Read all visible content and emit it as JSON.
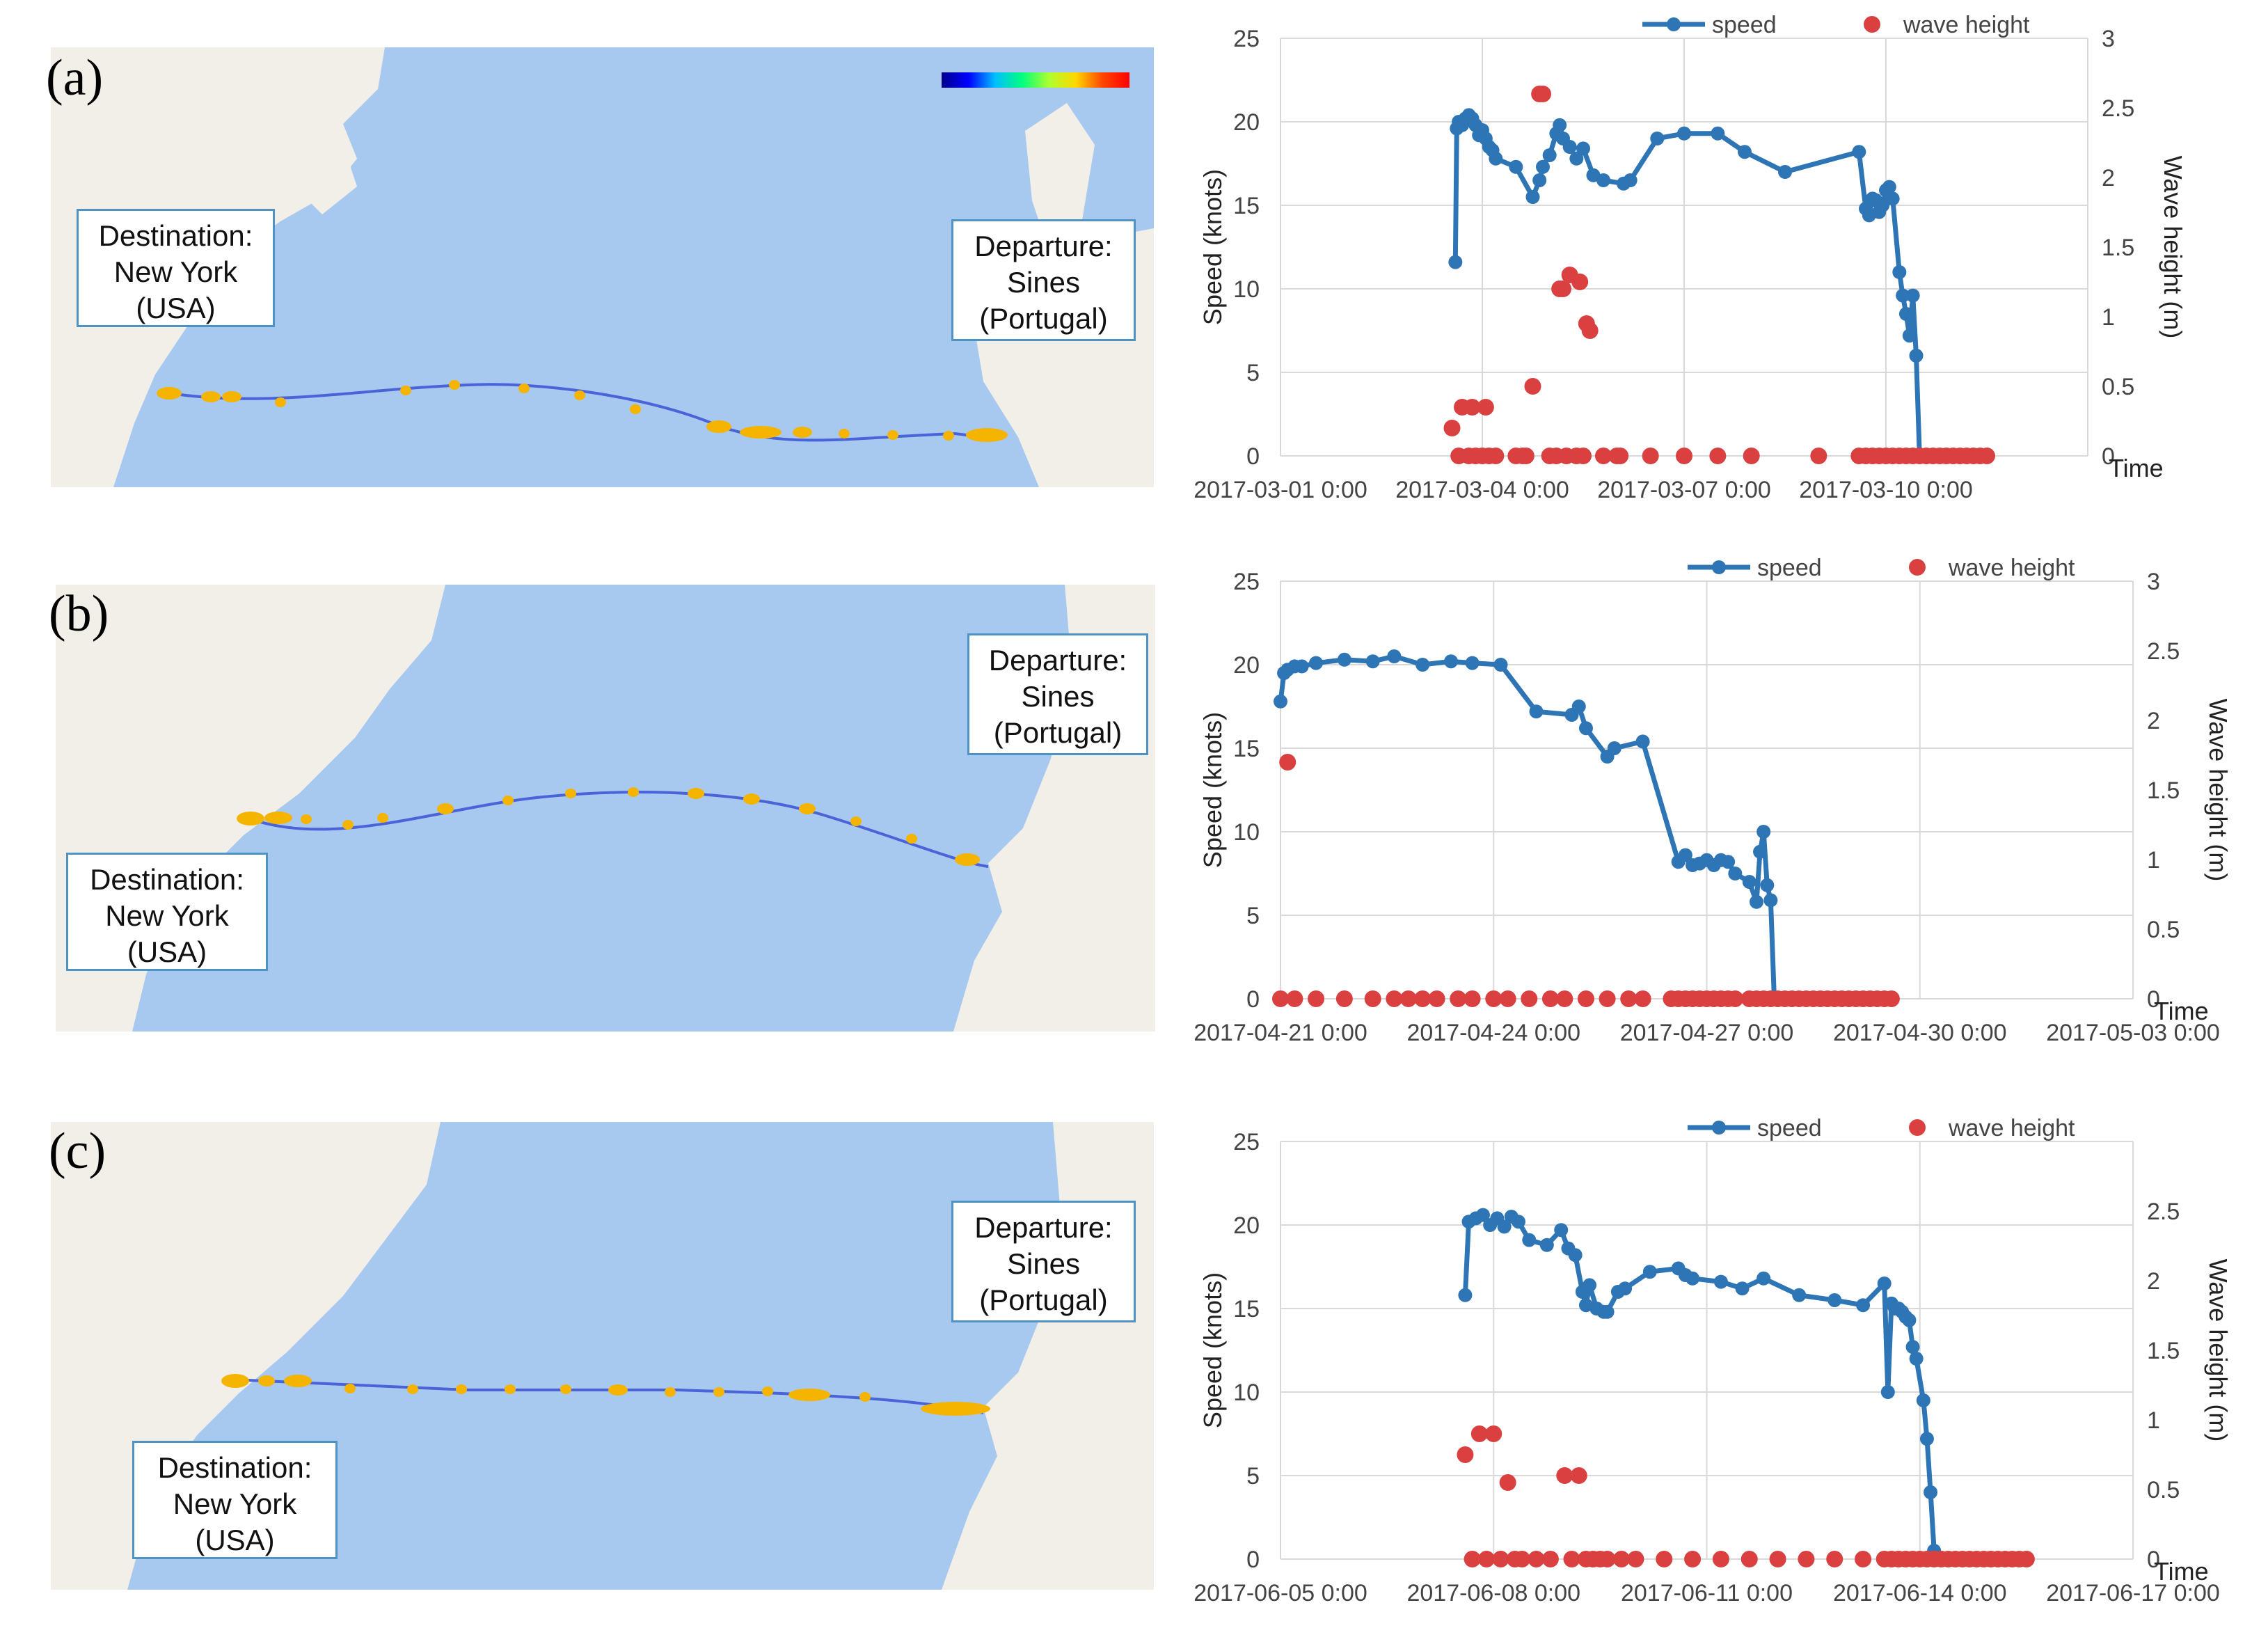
{
  "panels": [
    {
      "label": "(a)",
      "destination": [
        "Destination:",
        "New York",
        "(USA)"
      ],
      "departure": [
        "Departure:",
        "Sines",
        "(Portugal)"
      ],
      "chart_data": {
        "type": "line+scatter",
        "series": [
          {
            "name": "speed",
            "axis": "left",
            "style": "line",
            "x": [
              2.6,
              2.62,
              2.65,
              2.7,
              2.75,
              2.8,
              2.85,
              2.9,
              2.95,
              3.0,
              3.05,
              3.1,
              3.15,
              3.2,
              3.5,
              3.75,
              3.85,
              3.9,
              4.0,
              4.1,
              4.15,
              4.2,
              4.3,
              4.4,
              4.5,
              4.65,
              4.8,
              5.1,
              5.2,
              5.6,
              6.0,
              6.5,
              6.9,
              7.5,
              8.6,
              8.7,
              8.75,
              8.8,
              8.85,
              8.9,
              8.95,
              9.0,
              9.05,
              9.1,
              9.2,
              9.25,
              9.3,
              9.35,
              9.4,
              9.45,
              9.5
            ],
            "values": [
              11.6,
              19.6,
              20.0,
              19.8,
              20.2,
              20.4,
              20.2,
              19.8,
              19.2,
              19.5,
              19.0,
              18.5,
              18.3,
              17.8,
              17.3,
              15.5,
              16.5,
              17.3,
              18.0,
              19.3,
              19.8,
              19.0,
              18.5,
              17.8,
              18.4,
              16.8,
              16.5,
              16.3,
              16.5,
              19.0,
              19.3,
              19.3,
              18.2,
              17.0,
              18.2,
              14.8,
              14.4,
              15.4,
              15.3,
              14.6,
              15.0,
              15.9,
              16.1,
              15.4,
              11.0,
              9.6,
              8.5,
              7.2,
              9.6,
              6.0,
              0
            ]
          },
          {
            "name": "wave height",
            "axis": "right",
            "style": "markers",
            "x": [
              2.55,
              2.65,
              2.7,
              2.8,
              2.85,
              2.9,
              3.0,
              3.05,
              3.1,
              3.2,
              3.5,
              3.6,
              3.65,
              3.75,
              3.85,
              3.9,
              4.0,
              4.1,
              4.15,
              4.2,
              4.25,
              4.3,
              4.4,
              4.45,
              4.5,
              4.55,
              4.6,
              4.8,
              5.0,
              5.05,
              5.5,
              6.0,
              6.5,
              7.0,
              8.0,
              8.6,
              8.7,
              8.8,
              8.9,
              9.0,
              9.1,
              9.2,
              9.3,
              9.4,
              9.5,
              9.6,
              9.7,
              9.8,
              9.9,
              10.0,
              10.1,
              10.2,
              10.3,
              10.4,
              10.5
            ],
            "values": [
              0.2,
              0.0,
              0.35,
              0.0,
              0.35,
              0.0,
              0.0,
              0.35,
              0.0,
              0.0,
              0.0,
              0.0,
              0.0,
              0.5,
              2.6,
              2.6,
              0.0,
              0.0,
              1.2,
              1.2,
              0.0,
              1.3,
              0.0,
              1.25,
              0.0,
              0.95,
              0.9,
              0.0,
              0.0,
              0.0,
              0.0,
              0.0,
              0.0,
              0.0,
              0.0,
              0.0,
              0.0,
              0.0,
              0.0,
              0.0,
              0.0,
              0.0,
              0.0,
              0.0,
              0.0,
              0.0,
              0.0,
              0.0,
              0.0,
              0.0,
              0.0,
              0.0,
              0.0,
              0.0,
              0.0
            ]
          }
        ],
        "x_ticks": [
          "2017-03-01 0:00",
          "2017-03-04 0:00",
          "2017-03-07 0:00",
          "2017-03-10 0:00"
        ],
        "ylim": [
          0,
          25
        ],
        "y_ticks": [
          0,
          5,
          10,
          15,
          20,
          25
        ],
        "y2lim": [
          0,
          3
        ],
        "y2_ticks": [
          "0",
          "0.5",
          "1",
          "1.5",
          "2",
          "2.5",
          "3"
        ],
        "ylabel": "Speed (knots)",
        "y2label": "Wave height (m)",
        "xlabel": "Time"
      }
    },
    {
      "label": "(b)",
      "destination": [
        "Destination:",
        "New York",
        "(USA)"
      ],
      "departure": [
        "Departure:",
        "Sines",
        "(Portugal)"
      ],
      "chart_data": {
        "type": "line+scatter",
        "series": [
          {
            "name": "speed",
            "axis": "left",
            "style": "line",
            "x": [
              0.0,
              0.05,
              0.1,
              0.2,
              0.3,
              0.5,
              0.9,
              1.3,
              1.6,
              2.0,
              2.4,
              2.7,
              3.1,
              3.6,
              4.1,
              4.2,
              4.3,
              4.6,
              4.7,
              5.1,
              5.6,
              5.7,
              5.8,
              5.9,
              6.0,
              6.1,
              6.2,
              6.3,
              6.4,
              6.6,
              6.7,
              6.75,
              6.8,
              6.85,
              6.9,
              6.95
            ],
            "values": [
              17.8,
              19.5,
              19.7,
              19.9,
              19.9,
              20.1,
              20.3,
              20.2,
              20.5,
              20.0,
              20.2,
              20.1,
              20.0,
              17.2,
              17.0,
              17.5,
              16.2,
              14.5,
              15.0,
              15.4,
              8.2,
              8.6,
              8.0,
              8.1,
              8.3,
              8.0,
              8.3,
              8.2,
              7.5,
              7.0,
              5.8,
              8.8,
              10.0,
              6.8,
              5.9,
              0
            ]
          },
          {
            "name": "wave height",
            "axis": "right",
            "style": "markers",
            "x": [
              0.0,
              0.1,
              0.2,
              0.5,
              0.9,
              1.3,
              1.6,
              1.8,
              2.0,
              2.2,
              2.5,
              2.7,
              3.0,
              3.2,
              3.5,
              3.8,
              4.0,
              4.3,
              4.6,
              4.9,
              5.1,
              5.5,
              5.6,
              5.7,
              5.8,
              5.9,
              6.0,
              6.1,
              6.2,
              6.3,
              6.4,
              6.6,
              6.7,
              6.8,
              6.9,
              7.0,
              7.1,
              7.2,
              7.3,
              7.4,
              7.5,
              7.6,
              7.7,
              7.8,
              7.9,
              8.0,
              8.1,
              8.2,
              8.3,
              8.4,
              8.5,
              8.6
            ],
            "values": [
              0.0,
              1.7,
              0.0,
              0.0,
              0.0,
              0.0,
              0.0,
              0.0,
              0.0,
              0.0,
              0.0,
              0.0,
              0.0,
              0.0,
              0.0,
              0.0,
              0.0,
              0.0,
              0.0,
              0.0,
              0.0,
              0.0,
              0.0,
              0.0,
              0.0,
              0.0,
              0.0,
              0.0,
              0.0,
              0.0,
              0.0,
              0.0,
              0.0,
              0.0,
              0.0,
              0.0,
              0.0,
              0.0,
              0.0,
              0.0,
              0.0,
              0.0,
              0.0,
              0.0,
              0.0,
              0.0,
              0.0,
              0.0,
              0.0,
              0.0,
              0.0,
              0.0
            ]
          }
        ],
        "x_ticks": [
          "2017-04-21 0:00",
          "2017-04-24 0:00",
          "2017-04-27 0:00",
          "2017-04-30 0:00",
          "2017-05-03 0:00"
        ],
        "ylim": [
          0,
          25
        ],
        "y_ticks": [
          0,
          5,
          10,
          15,
          20,
          25
        ],
        "y2lim": [
          0,
          3
        ],
        "y2_ticks": [
          "0",
          "0.5",
          "1",
          "1.5",
          "2",
          "2.5",
          "3"
        ],
        "ylabel": "Speed (knots)",
        "y2label": "Wave height (m)",
        "xlabel": "Time"
      }
    },
    {
      "label": "(c)",
      "destination": [
        "Destination:",
        "New York",
        "(USA)"
      ],
      "departure": [
        "Departure:",
        "Sines",
        "(Portugal)"
      ],
      "chart_data": {
        "type": "line+scatter",
        "series": [
          {
            "name": "speed",
            "axis": "left",
            "style": "line",
            "x": [
              2.6,
              2.65,
              2.75,
              2.85,
              2.95,
              3.05,
              3.15,
              3.25,
              3.35,
              3.5,
              3.75,
              3.95,
              4.05,
              4.15,
              4.25,
              4.3,
              4.35,
              4.45,
              4.55,
              4.6,
              4.75,
              4.85,
              5.2,
              5.6,
              5.7,
              5.8,
              6.2,
              6.5,
              6.8,
              7.3,
              7.8,
              8.2,
              8.5,
              8.55,
              8.6,
              8.65,
              8.7,
              8.75,
              8.8,
              8.85,
              8.9,
              8.95,
              9.05,
              9.1,
              9.15,
              9.2,
              9.25
            ],
            "values": [
              15.8,
              20.2,
              20.4,
              20.6,
              20.0,
              20.4,
              19.9,
              20.5,
              20.2,
              19.1,
              18.8,
              19.7,
              18.6,
              18.2,
              16.0,
              15.2,
              16.4,
              15.0,
              14.8,
              14.8,
              16.0,
              16.2,
              17.2,
              17.4,
              17.0,
              16.8,
              16.6,
              16.2,
              16.8,
              15.8,
              15.5,
              15.2,
              16.5,
              10.0,
              15.3,
              15.0,
              15.0,
              14.8,
              14.5,
              14.3,
              12.7,
              12.0,
              9.5,
              7.2,
              4.0,
              0.5,
              0
            ]
          },
          {
            "name": "wave height",
            "axis": "right",
            "style": "markers",
            "x": [
              2.6,
              2.7,
              2.8,
              2.9,
              3.0,
              3.1,
              3.2,
              3.3,
              3.4,
              3.6,
              3.8,
              4.0,
              4.1,
              4.2,
              4.3,
              4.4,
              4.5,
              4.6,
              4.8,
              5.0,
              5.4,
              5.8,
              6.2,
              6.6,
              7.0,
              7.4,
              7.8,
              8.2,
              8.5,
              8.6,
              8.7,
              8.8,
              8.9,
              9.0,
              9.1,
              9.2,
              9.3,
              9.4,
              9.5,
              9.6,
              9.7,
              9.8,
              9.9,
              10.0,
              10.1,
              10.2,
              10.3,
              10.4,
              10.5
            ],
            "values": [
              0.75,
              0.0,
              0.9,
              0.0,
              0.9,
              0.0,
              0.55,
              0.0,
              0.0,
              0.0,
              0.0,
              0.6,
              0.0,
              0.6,
              0.0,
              0.0,
              0.0,
              0.0,
              0.0,
              0.0,
              0.0,
              0.0,
              0.0,
              0.0,
              0.0,
              0.0,
              0.0,
              0.0,
              0.0,
              0.0,
              0.0,
              0.0,
              0.0,
              0.0,
              0.0,
              0.0,
              0.0,
              0.0,
              0.0,
              0.0,
              0.0,
              0.0,
              0.0,
              0.0,
              0.0,
              0.0,
              0.0,
              0.0,
              0.0
            ]
          }
        ],
        "x_ticks": [
          "2017-06-05 0:00",
          "2017-06-08 0:00",
          "2017-06-11 0:00",
          "2017-06-14 0:00",
          "2017-06-17 0:00"
        ],
        "ylim": [
          0,
          25
        ],
        "y_ticks": [
          0,
          5,
          10,
          15,
          20,
          25
        ],
        "y2lim": [
          0,
          3
        ],
        "y2_ticks": [
          "0",
          "0.5",
          "1",
          "1.5",
          "2",
          "2.5",
          ""
        ],
        "ylabel": "Speed (knots)",
        "y2label": "Wave height (m)",
        "xlabel": "Time"
      }
    }
  ],
  "colors": {
    "speed": "#2e75b6",
    "wave": "#d9403f",
    "route": "#4a63d8",
    "ship": "#f5b400",
    "grid": "#d9d9d9",
    "land": "#f2efe9",
    "water": "#a7c9ef"
  }
}
